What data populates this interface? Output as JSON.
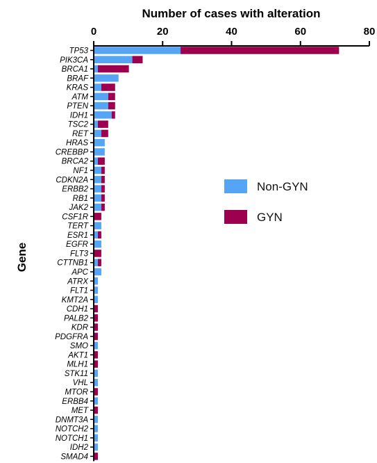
{
  "chart_data": {
    "type": "bar",
    "orientation": "horizontal",
    "stacked": true,
    "xlabel": "Number of cases with alteration",
    "ylabel": "Gene",
    "xlim": [
      0,
      80
    ],
    "xticks": [
      0,
      20,
      40,
      60,
      80
    ],
    "x_axis_position": "top",
    "grid": false,
    "legend_position": "right",
    "categories": [
      "TP53",
      "PIK3CA",
      "BRCA1",
      "BRAF",
      "KRAS",
      "ATM",
      "PTEN",
      "IDH1",
      "TSC2",
      "RET",
      "HRAS",
      "CREBBP",
      "BRCA2",
      "NF1",
      "CDKN2A",
      "ERBB2",
      "RB1",
      "JAK2",
      "CSF1R",
      "TERT",
      "ESR1",
      "EGFR",
      "FLT3",
      "CTTNB1",
      "APC",
      "ATRX",
      "FLT1",
      "KMT2A",
      "CDH1",
      "PALB2",
      "KDR",
      "PDGFRA",
      "SMO",
      "AKT1",
      "MLH1",
      "STK11",
      "VHL",
      "MTOR",
      "ERBB4",
      "MET",
      "DNMT3A",
      "NOTCH2",
      "NOTCH1",
      "IDH2",
      "SMAD4"
    ],
    "series": [
      {
        "name": "Non-GYN",
        "color": "#56a5f5",
        "values": [
          25,
          11,
          1,
          7,
          2,
          4,
          4,
          5,
          1,
          2,
          3,
          3,
          1,
          2,
          2,
          2,
          2,
          2,
          0,
          2,
          1,
          2,
          0,
          1,
          2,
          1,
          1,
          1,
          0,
          0,
          0,
          0,
          1,
          0,
          0,
          1,
          1,
          0,
          1,
          0,
          1,
          1,
          1,
          1,
          0
        ]
      },
      {
        "name": "GYN",
        "color": "#9e0050",
        "values": [
          46,
          3,
          9,
          0,
          4,
          2,
          2,
          1,
          3,
          2,
          0,
          0,
          2,
          1,
          1,
          1,
          1,
          1,
          2,
          0,
          1,
          0,
          2,
          1,
          0,
          0,
          0,
          0,
          1,
          1,
          1,
          1,
          0,
          1,
          1,
          0,
          0,
          1,
          0,
          1,
          0,
          0,
          0,
          0,
          1
        ]
      }
    ]
  }
}
